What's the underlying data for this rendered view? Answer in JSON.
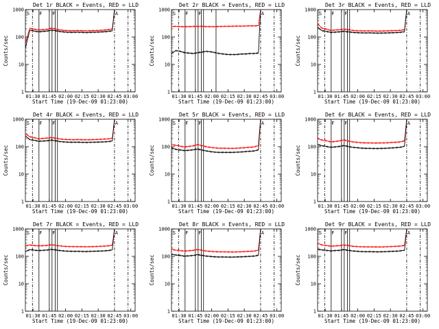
{
  "colors": {
    "events": "#000000",
    "lld": "#ff0000",
    "axes": "#000000",
    "background": "#ffffff"
  },
  "figure": {
    "ylabel": "Counts/sec",
    "xlabel": "Start Time (19-Dec-09 01:23:00)",
    "y_ticks": [
      "1",
      "10",
      "100",
      "1000"
    ],
    "x_ticks": [
      "01:30",
      "01:45",
      "02:00",
      "02:15",
      "02:30",
      "02:45",
      "03:00"
    ]
  },
  "chart_data": [
    {
      "type": "line",
      "title": "Det 1r BLACK = Events, RED = LLD",
      "xlabel": "Start Time (19-Dec-09 01:23:00)",
      "ylabel": "Counts/sec",
      "x_unit": "minutes after 01:23:00",
      "xlim": [
        0,
        101
      ],
      "ylim": [
        1,
        1000
      ],
      "yscale": "log",
      "grid": false,
      "x": [
        0,
        4,
        8,
        12,
        16,
        20,
        24,
        28,
        32,
        36,
        40,
        44,
        48,
        52,
        56,
        60,
        64,
        68,
        72,
        76,
        80,
        82
      ],
      "series": [
        {
          "name": "LLD",
          "color": "#ff0000",
          "values": [
            60,
            205,
            195,
            180,
            185,
            190,
            210,
            195,
            180,
            175,
            170,
            170,
            172,
            170,
            168,
            170,
            172,
            175,
            178,
            185,
            195,
            1000
          ]
        },
        {
          "name": "Events",
          "color": "#000000",
          "values": [
            40,
            175,
            165,
            155,
            160,
            165,
            180,
            168,
            158,
            152,
            148,
            148,
            150,
            148,
            145,
            148,
            150,
            152,
            155,
            160,
            168,
            1000
          ]
        }
      ],
      "vlines_solid": [
        12.5,
        22,
        24.5,
        27.5,
        29.5
      ],
      "vlines_dashed": [
        6.5,
        82,
        94.5
      ],
      "flags": [
        "S",
        "F",
        "F",
        "A"
      ]
    },
    {
      "type": "line",
      "title": "Det 2r BLACK = Events, RED = LLD",
      "xlabel": "Start Time (19-Dec-09 01:23:00)",
      "ylabel": "Counts/sec",
      "x_unit": "minutes after 01:23:00",
      "xlim": [
        0,
        101
      ],
      "ylim": [
        1,
        1000
      ],
      "yscale": "log",
      "grid": false,
      "x": [
        0,
        4,
        8,
        12,
        16,
        20,
        24,
        28,
        32,
        36,
        40,
        44,
        48,
        52,
        56,
        60,
        64,
        68,
        72,
        76,
        80,
        82
      ],
      "series": [
        {
          "name": "LLD",
          "color": "#ff0000",
          "values": [
            240,
            245,
            240,
            238,
            240,
            242,
            245,
            243,
            240,
            238,
            240,
            242,
            245,
            245,
            248,
            250,
            250,
            252,
            255,
            255,
            258,
            1000
          ]
        },
        {
          "name": "Events",
          "color": "#000000",
          "values": [
            25,
            32,
            30,
            27,
            26,
            25,
            27,
            28,
            30,
            29,
            27,
            25,
            24,
            23,
            23,
            23,
            24,
            24,
            25,
            25,
            26,
            1000
          ]
        }
      ],
      "vlines_solid": [
        12.5,
        22,
        24.5,
        27.5,
        29.5,
        41
      ],
      "vlines_dashed": [
        6.5,
        82,
        94.5
      ],
      "flags": [
        "S",
        "F",
        "F",
        "A"
      ]
    },
    {
      "type": "line",
      "title": "Det 3r BLACK = Events, RED = LLD",
      "xlabel": "Start Time (19-Dec-09 01:23:00)",
      "ylabel": "Counts/sec",
      "x_unit": "minutes after 01:23:00",
      "xlim": [
        0,
        101
      ],
      "ylim": [
        1,
        1000
      ],
      "yscale": "log",
      "grid": false,
      "x": [
        0,
        4,
        8,
        12,
        16,
        20,
        24,
        28,
        32,
        36,
        40,
        44,
        48,
        52,
        56,
        60,
        64,
        68,
        72,
        76,
        80,
        82
      ],
      "series": [
        {
          "name": "LLD",
          "color": "#ff0000",
          "values": [
            300,
            210,
            195,
            175,
            180,
            185,
            195,
            185,
            175,
            170,
            168,
            167,
            168,
            166,
            165,
            166,
            168,
            170,
            172,
            175,
            185,
            1000
          ]
        },
        {
          "name": "Events",
          "color": "#000000",
          "values": [
            230,
            170,
            160,
            148,
            150,
            155,
            162,
            155,
            148,
            144,
            142,
            141,
            142,
            140,
            139,
            140,
            141,
            143,
            145,
            148,
            156,
            1000
          ]
        }
      ],
      "vlines_solid": [
        12.5,
        22,
        24.5,
        27.5,
        29.5
      ],
      "vlines_dashed": [
        6.5,
        82,
        94.5
      ],
      "flags": [
        "S",
        "F",
        "F",
        "A"
      ]
    },
    {
      "type": "line",
      "title": "Det 4r BLACK = Events, RED = LLD",
      "xlabel": "Start Time (19-Dec-09 01:23:00)",
      "ylabel": "Counts/sec",
      "x_unit": "minutes after 01:23:00",
      "xlim": [
        0,
        101
      ],
      "ylim": [
        1,
        1000
      ],
      "yscale": "log",
      "grid": false,
      "x": [
        0,
        4,
        8,
        12,
        16,
        20,
        24,
        28,
        32,
        36,
        40,
        44,
        48,
        52,
        56,
        60,
        64,
        68,
        72,
        76,
        80,
        82
      ],
      "series": [
        {
          "name": "LLD",
          "color": "#ff0000",
          "values": [
            310,
            230,
            215,
            195,
            200,
            205,
            215,
            205,
            190,
            185,
            182,
            180,
            182,
            180,
            178,
            180,
            182,
            185,
            188,
            192,
            205,
            1000
          ]
        },
        {
          "name": "Events",
          "color": "#000000",
          "values": [
            250,
            180,
            172,
            158,
            160,
            165,
            172,
            165,
            153,
            149,
            146,
            145,
            146,
            144,
            143,
            145,
            146,
            148,
            150,
            153,
            162,
            1000
          ]
        }
      ],
      "vlines_solid": [
        12.5,
        22,
        24.5,
        27.5,
        29.5
      ],
      "vlines_dashed": [
        6.5,
        82,
        94.5
      ],
      "flags": [
        "S",
        "F",
        "F",
        "A"
      ]
    },
    {
      "type": "line",
      "title": "Det 5r BLACK = Events, RED = LLD",
      "xlabel": "Start Time (19-Dec-09 01:23:00)",
      "ylabel": "Counts/sec",
      "x_unit": "minutes after 01:23:00",
      "xlim": [
        0,
        101
      ],
      "ylim": [
        1,
        1000
      ],
      "yscale": "log",
      "grid": false,
      "x": [
        0,
        4,
        8,
        12,
        16,
        20,
        24,
        28,
        32,
        36,
        40,
        44,
        48,
        52,
        56,
        60,
        64,
        68,
        72,
        76,
        80,
        82
      ],
      "series": [
        {
          "name": "LLD",
          "color": "#ff0000",
          "values": [
            120,
            112,
            105,
            98,
            102,
            108,
            118,
            110,
            100,
            94,
            90,
            88,
            88,
            87,
            87,
            88,
            90,
            92,
            95,
            98,
            110,
            1000
          ]
        },
        {
          "name": "Events",
          "color": "#000000",
          "values": [
            90,
            80,
            76,
            72,
            74,
            77,
            82,
            76,
            70,
            66,
            63,
            62,
            62,
            62,
            62,
            63,
            64,
            66,
            68,
            70,
            76,
            1000
          ]
        }
      ],
      "vlines_solid": [
        12.5,
        22,
        24.5,
        27.5,
        29.5
      ],
      "vlines_dashed": [
        6.5,
        82,
        94.5
      ],
      "flags": [
        "S",
        "F",
        "F",
        "A"
      ]
    },
    {
      "type": "line",
      "title": "Det 6r BLACK = Events, RED = LLD",
      "xlabel": "Start Time (19-Dec-09 01:23:00)",
      "ylabel": "Counts/sec",
      "x_unit": "minutes after 01:23:00",
      "xlim": [
        0,
        101
      ],
      "ylim": [
        1,
        1000
      ],
      "yscale": "log",
      "grid": false,
      "x": [
        0,
        4,
        8,
        12,
        16,
        20,
        24,
        28,
        32,
        36,
        40,
        44,
        48,
        52,
        56,
        60,
        64,
        68,
        72,
        76,
        80,
        82
      ],
      "series": [
        {
          "name": "LLD",
          "color": "#ff0000",
          "values": [
            200,
            175,
            165,
            150,
            155,
            162,
            175,
            162,
            150,
            145,
            140,
            138,
            137,
            136,
            136,
            137,
            139,
            142,
            145,
            150,
            162,
            1000
          ]
        },
        {
          "name": "Events",
          "color": "#000000",
          "values": [
            120,
            108,
            102,
            95,
            98,
            102,
            110,
            102,
            95,
            92,
            89,
            87,
            87,
            86,
            86,
            87,
            88,
            90,
            92,
            95,
            103,
            1000
          ]
        }
      ],
      "vlines_solid": [
        12.5,
        22,
        24.5,
        27.5,
        29.5
      ],
      "vlines_dashed": [
        6.5,
        82,
        94.5
      ],
      "flags": [
        "S",
        "F",
        "F",
        "A"
      ]
    },
    {
      "type": "line",
      "title": "Det 7r BLACK = Events, RED = LLD",
      "xlabel": "Start Time (19-Dec-09 01:23:00)",
      "ylabel": "Counts/sec",
      "x_unit": "minutes after 01:23:00",
      "xlim": [
        0,
        101
      ],
      "ylim": [
        1,
        1000
      ],
      "yscale": "log",
      "grid": false,
      "x": [
        0,
        4,
        8,
        12,
        16,
        20,
        24,
        28,
        32,
        36,
        40,
        44,
        48,
        52,
        56,
        60,
        64,
        68,
        72,
        76,
        80,
        82
      ],
      "series": [
        {
          "name": "LLD",
          "color": "#ff0000",
          "values": [
            240,
            260,
            250,
            240,
            245,
            250,
            265,
            252,
            240,
            232,
            228,
            226,
            226,
            225,
            224,
            225,
            228,
            232,
            236,
            240,
            255,
            1000
          ]
        },
        {
          "name": "Events",
          "color": "#000000",
          "values": [
            150,
            175,
            168,
            162,
            166,
            170,
            180,
            170,
            162,
            157,
            154,
            152,
            153,
            151,
            150,
            152,
            154,
            156,
            158,
            162,
            172,
            1000
          ]
        }
      ],
      "vlines_solid": [
        12.5,
        22,
        24.5,
        27.5,
        29.5
      ],
      "vlines_dashed": [
        6.5,
        82,
        94.5
      ],
      "flags": [
        "S",
        "F",
        "F",
        "A"
      ]
    },
    {
      "type": "line",
      "title": "Det 8r BLACK = Events, RED = LLD",
      "xlabel": "Start Time (19-Dec-09 01:23:00)",
      "ylabel": "Counts/sec",
      "x_unit": "minutes after 01:23:00",
      "xlim": [
        0,
        101
      ],
      "ylim": [
        1,
        1000
      ],
      "yscale": "log",
      "grid": false,
      "x": [
        0,
        4,
        8,
        12,
        16,
        20,
        24,
        28,
        32,
        36,
        40,
        44,
        48,
        52,
        56,
        60,
        64,
        68,
        72,
        76,
        80,
        82
      ],
      "series": [
        {
          "name": "LLD",
          "color": "#ff0000",
          "values": [
            180,
            168,
            162,
            156,
            160,
            166,
            178,
            166,
            156,
            152,
            148,
            146,
            146,
            145,
            144,
            145,
            147,
            150,
            153,
            156,
            168,
            1000
          ]
        },
        {
          "name": "Events",
          "color": "#000000",
          "values": [
            120,
            112,
            108,
            102,
            104,
            108,
            116,
            108,
            102,
            99,
            96,
            95,
            95,
            94,
            94,
            95,
            96,
            98,
            100,
            102,
            110,
            1000
          ]
        }
      ],
      "vlines_solid": [
        12.5,
        22,
        24.5,
        27.5,
        29.5
      ],
      "vlines_dashed": [
        6.5,
        82,
        94.5
      ],
      "flags": [
        "S",
        "F",
        "F",
        "A"
      ]
    },
    {
      "type": "line",
      "title": "Det 9r BLACK = Events, RED = LLD",
      "xlabel": "Start Time (19-Dec-09 01:23:00)",
      "ylabel": "Counts/sec",
      "x_unit": "minutes after 01:23:00",
      "xlim": [
        0,
        101
      ],
      "ylim": [
        1,
        1000
      ],
      "yscale": "log",
      "grid": false,
      "x": [
        0,
        4,
        8,
        12,
        16,
        20,
        24,
        28,
        32,
        36,
        40,
        44,
        48,
        52,
        56,
        60,
        64,
        68,
        72,
        76,
        80,
        82
      ],
      "series": [
        {
          "name": "LLD",
          "color": "#ff0000",
          "values": [
            300,
            260,
            248,
            235,
            240,
            246,
            262,
            248,
            235,
            228,
            224,
            222,
            222,
            221,
            220,
            221,
            224,
            228,
            232,
            236,
            250,
            1000
          ]
        },
        {
          "name": "Events",
          "color": "#000000",
          "values": [
            180,
            172,
            165,
            158,
            162,
            166,
            176,
            166,
            158,
            153,
            150,
            148,
            149,
            147,
            146,
            148,
            150,
            152,
            154,
            158,
            168,
            1000
          ]
        }
      ],
      "vlines_solid": [
        12.5,
        22,
        24.5,
        27.5,
        29.5
      ],
      "vlines_dashed": [
        6.5,
        82,
        94.5
      ],
      "flags": [
        "S",
        "F",
        "F",
        "A"
      ]
    }
  ]
}
